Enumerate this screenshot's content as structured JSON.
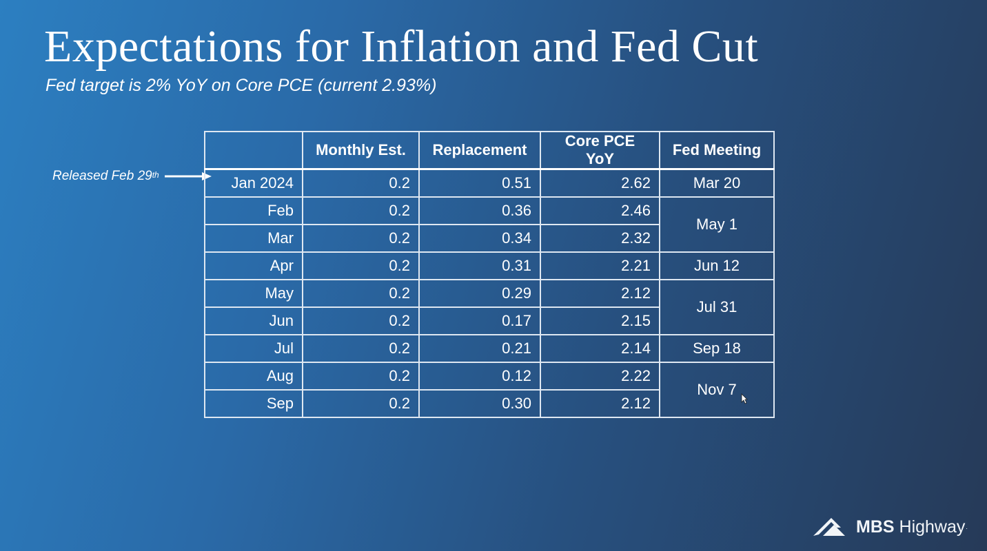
{
  "slide": {
    "title": "Expectations for Inflation and Fed Cut",
    "subtitle": "Fed target is 2% YoY on Core PCE (current 2.93%)",
    "annotation": {
      "text": "Released Feb 29",
      "superscript": "th"
    }
  },
  "table": {
    "headers": [
      "",
      "Monthly Est.",
      "Replacement",
      "Core PCE YoY",
      "Fed Meeting"
    ],
    "rows": [
      {
        "month": "Jan 2024",
        "monthly_est": "0.2",
        "replacement": "0.51",
        "core_pce_yoy": "2.62"
      },
      {
        "month": "Feb",
        "monthly_est": "0.2",
        "replacement": "0.36",
        "core_pce_yoy": "2.46"
      },
      {
        "month": "Mar",
        "monthly_est": "0.2",
        "replacement": "0.34",
        "core_pce_yoy": "2.32"
      },
      {
        "month": "Apr",
        "monthly_est": "0.2",
        "replacement": "0.31",
        "core_pce_yoy": "2.21"
      },
      {
        "month": "May",
        "monthly_est": "0.2",
        "replacement": "0.29",
        "core_pce_yoy": "2.12"
      },
      {
        "month": "Jun",
        "monthly_est": "0.2",
        "replacement": "0.17",
        "core_pce_yoy": "2.15"
      },
      {
        "month": "Jul",
        "monthly_est": "0.2",
        "replacement": "0.21",
        "core_pce_yoy": "2.14"
      },
      {
        "month": "Aug",
        "monthly_est": "0.2",
        "replacement": "0.12",
        "core_pce_yoy": "2.22"
      },
      {
        "month": "Sep",
        "monthly_est": "0.2",
        "replacement": "0.30",
        "core_pce_yoy": "2.12"
      }
    ],
    "fed_meetings": [
      "Mar 20",
      "May 1",
      "Jun 12",
      "Jul 31",
      "Sep 18",
      "Nov 7"
    ]
  },
  "logo": {
    "brand": "MBS",
    "name": " Highway",
    "mark": "."
  },
  "icons": {
    "arrow": "arrow-right-icon",
    "cursor": "mouse-pointer-icon",
    "logo_mark": "mountain-logo-icon"
  },
  "colors": {
    "background_left": "#2c7fc1",
    "background_right": "#263a58",
    "text": "#ffffff",
    "table_border": "#dfe8f2"
  }
}
